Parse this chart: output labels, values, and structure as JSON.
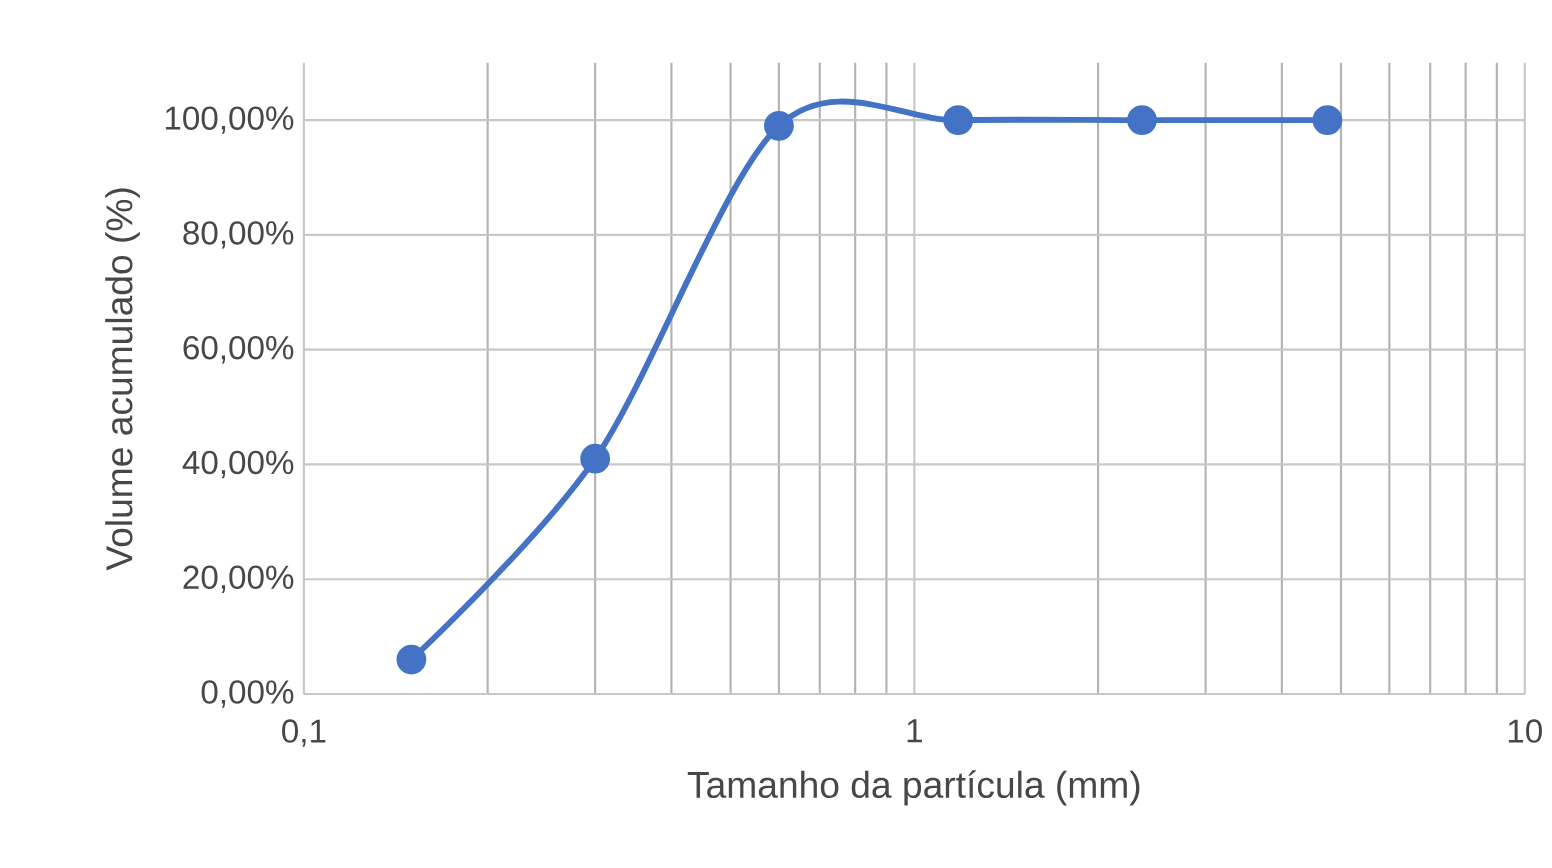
{
  "chart_data": {
    "type": "line",
    "xlabel": "Tamanho da partícula (mm)",
    "ylabel": "Volume acumulado (%)",
    "x": [
      0.15,
      0.3,
      0.6,
      1.18,
      2.36,
      4.75
    ],
    "series": [
      {
        "color": "#4472c4",
        "values": [
          6,
          41,
          99,
          100,
          100,
          100
        ]
      }
    ],
    "log": "x",
    "xlim": [
      0.1,
      10
    ],
    "xticks": [
      {
        "value": 0.1,
        "label": "0,1"
      },
      1,
      10
    ],
    "ylim": [
      0,
      110
    ],
    "yticks": [
      {
        "value": 0,
        "label": "0,00%"
      },
      {
        "value": 20,
        "label": "20,00%"
      },
      {
        "value": 40,
        "label": "40,00%"
      },
      {
        "value": 60,
        "label": "60,00%"
      },
      {
        "value": 80,
        "label": "80,00%"
      },
      {
        "value": 100,
        "label": "100,00%"
      }
    ],
    "grid": true,
    "marker": "circle",
    "line_style": "solid"
  }
}
